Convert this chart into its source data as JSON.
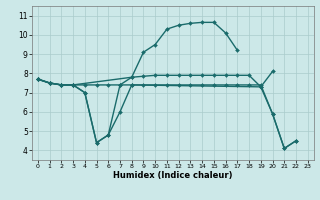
{
  "xlabel": "Humidex (Indice chaleur)",
  "xlim": [
    -0.5,
    23.5
  ],
  "ylim": [
    3.5,
    11.5
  ],
  "xtick_labels": [
    "0",
    "1",
    "2",
    "3",
    "4",
    "5",
    "6",
    "7",
    "8",
    "9",
    "10",
    "11",
    "12",
    "13",
    "14",
    "15",
    "16",
    "17",
    "18",
    "19",
    "20",
    "21",
    "22",
    "23"
  ],
  "xticks": [
    0,
    1,
    2,
    3,
    4,
    5,
    6,
    7,
    8,
    9,
    10,
    11,
    12,
    13,
    14,
    15,
    16,
    17,
    18,
    19,
    20,
    21,
    22,
    23
  ],
  "yticks": [
    4,
    5,
    6,
    7,
    8,
    9,
    10,
    11
  ],
  "bg_color": "#cce8e8",
  "line_color": "#1a6b6b",
  "grid_color": "#aacccc",
  "line1_x": [
    0,
    1,
    2,
    3,
    4,
    5,
    6,
    7,
    8,
    9,
    10,
    11,
    12,
    13,
    14,
    15,
    16,
    17
  ],
  "line1_y": [
    7.7,
    7.5,
    7.4,
    7.4,
    7.0,
    4.4,
    4.8,
    7.4,
    7.8,
    9.1,
    9.5,
    10.3,
    10.5,
    10.6,
    10.65,
    10.65,
    10.1,
    9.2
  ],
  "line2_x": [
    0,
    1,
    2,
    3,
    8,
    9,
    10,
    11,
    12,
    13,
    14,
    15,
    16,
    17,
    18,
    19,
    20
  ],
  "line2_y": [
    7.7,
    7.5,
    7.4,
    7.4,
    7.8,
    7.85,
    7.9,
    7.9,
    7.9,
    7.9,
    7.9,
    7.9,
    7.9,
    7.9,
    7.9,
    7.3,
    8.1
  ],
  "line3_x": [
    0,
    1,
    2,
    3,
    4,
    5,
    6,
    7,
    8,
    19,
    20,
    21,
    22
  ],
  "line3_y": [
    7.7,
    7.5,
    7.4,
    7.4,
    7.0,
    4.4,
    4.8,
    6.0,
    7.4,
    7.3,
    5.9,
    4.1,
    4.5
  ],
  "line4_x": [
    0,
    1,
    2,
    3,
    4,
    5,
    6,
    7,
    8,
    9,
    10,
    11,
    12,
    13,
    14,
    15,
    16,
    17,
    18,
    19,
    20,
    21,
    22
  ],
  "line4_y": [
    7.7,
    7.5,
    7.4,
    7.4,
    7.4,
    7.4,
    7.4,
    7.4,
    7.4,
    7.4,
    7.4,
    7.4,
    7.4,
    7.4,
    7.4,
    7.4,
    7.4,
    7.4,
    7.4,
    7.4,
    5.9,
    4.1,
    4.5
  ]
}
